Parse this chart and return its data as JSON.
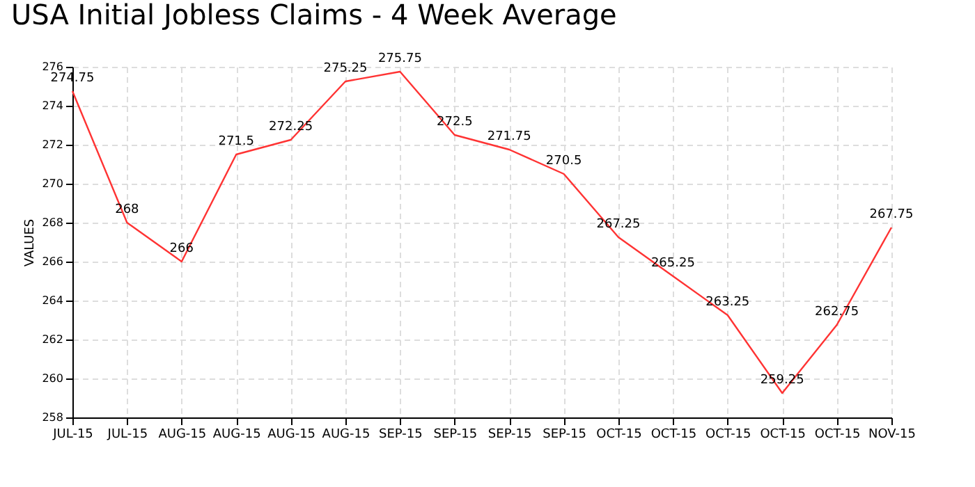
{
  "chart_data": {
    "type": "line",
    "title": "USA Initial Jobless Claims - 4 Week Average",
    "ylabel": "VALUES",
    "categories": [
      "JUL-15",
      "JUL-15",
      "AUG-15",
      "AUG-15",
      "AUG-15",
      "AUG-15",
      "SEP-15",
      "SEP-15",
      "SEP-15",
      "SEP-15",
      "OCT-15",
      "OCT-15",
      "OCT-15",
      "OCT-15",
      "OCT-15",
      "NOV-15"
    ],
    "series": [
      {
        "color": "#ff3333",
        "values": [
          274.75,
          268,
          266,
          271.5,
          272.25,
          275.25,
          275.75,
          272.5,
          271.75,
          270.5,
          267.25,
          265.25,
          263.25,
          259.25,
          262.75,
          267.75
        ]
      }
    ],
    "ylim": [
      258,
      276
    ],
    "yticks": [
      258,
      260,
      262,
      264,
      266,
      268,
      270,
      272,
      274,
      276
    ],
    "grid": true,
    "data_labels": true,
    "marker": "none"
  }
}
